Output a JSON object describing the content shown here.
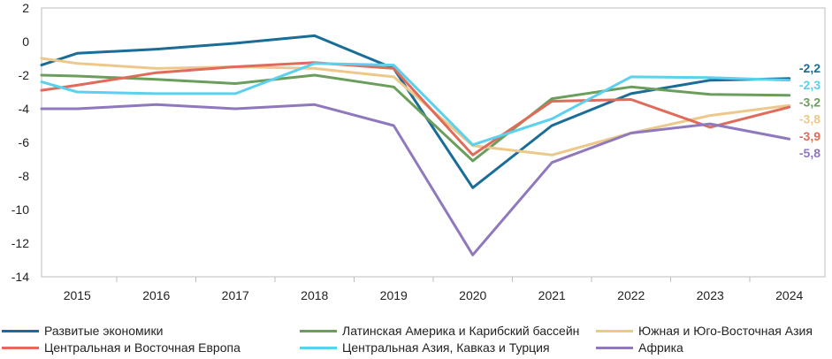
{
  "chart_data": {
    "type": "line",
    "title": "",
    "xlabel": "",
    "ylabel": "",
    "x": [
      "2015",
      "2016",
      "2017",
      "2018",
      "2019",
      "2020",
      "2021",
      "2022",
      "2023",
      "2024"
    ],
    "ylim": [
      -14,
      2
    ],
    "yticks": [
      2,
      0,
      -2,
      -4,
      -6,
      -8,
      -10,
      -12,
      -14
    ],
    "ytick_labels": [
      "2",
      "0",
      "-2",
      "-4",
      "-6",
      "-8",
      "-10",
      "-12",
      "-14"
    ],
    "series": [
      {
        "name": "Развитые экономики",
        "color": "#1a6d96",
        "x": [
          2014.55,
          2015,
          2016,
          2017,
          2018,
          2019,
          2020,
          2021,
          2022,
          2023,
          2024
        ],
        "values": [
          -1.4,
          -0.7,
          -0.45,
          -0.1,
          0.35,
          -1.6,
          -8.7,
          -5.0,
          -3.1,
          -2.3,
          -2.2
        ],
        "end_label": "-2,2"
      },
      {
        "name": "Латинская Америка и Карибский бассейн",
        "color": "#6b9e5c",
        "x": [
          2014.55,
          2015,
          2016,
          2017,
          2018,
          2019,
          2020,
          2021,
          2022,
          2023,
          2024
        ],
        "values": [
          -2.0,
          -2.05,
          -2.25,
          -2.5,
          -2.0,
          -2.7,
          -7.1,
          -3.4,
          -2.7,
          -3.15,
          -3.2
        ],
        "end_label": "-3,2"
      },
      {
        "name": "Южная и Юго-Восточная Азия",
        "color": "#ecc98a",
        "x": [
          2014.55,
          2015,
          2016,
          2017,
          2018,
          2019,
          2020,
          2021,
          2022,
          2023,
          2024
        ],
        "values": [
          -1.0,
          -1.3,
          -1.6,
          -1.5,
          -1.6,
          -2.1,
          -6.2,
          -6.75,
          -5.45,
          -4.4,
          -3.8
        ],
        "end_label": "-3,8"
      },
      {
        "name": "Центральная и Восточная Европа",
        "color": "#e06b5a",
        "x": [
          2014.55,
          2015,
          2016,
          2017,
          2018,
          2019,
          2020,
          2021,
          2022,
          2023,
          2024
        ],
        "values": [
          -2.9,
          -2.6,
          -1.85,
          -1.5,
          -1.25,
          -1.6,
          -6.75,
          -3.55,
          -3.45,
          -5.1,
          -3.9
        ],
        "end_label": "-3,9"
      },
      {
        "name": "Центральная Азия, Кавказ и Турция",
        "color": "#5bd0ef",
        "x": [
          2014.55,
          2015,
          2016,
          2017,
          2018,
          2019,
          2020,
          2021,
          2022,
          2023,
          2024
        ],
        "values": [
          -2.4,
          -3.0,
          -3.1,
          -3.1,
          -1.3,
          -1.4,
          -6.15,
          -4.6,
          -2.1,
          -2.15,
          -2.3
        ],
        "end_label": "-2,3"
      },
      {
        "name": "Африка",
        "color": "#8f78bd",
        "x": [
          2014.55,
          2015,
          2016,
          2017,
          2018,
          2019,
          2020,
          2021,
          2022,
          2023,
          2024
        ],
        "values": [
          -4.0,
          -4.0,
          -3.75,
          -4.0,
          -3.75,
          -5.0,
          -12.7,
          -7.2,
          -5.45,
          -4.9,
          -5.8
        ],
        "end_label": "-5,8"
      }
    ]
  },
  "legend": {
    "items": [
      {
        "label": "Развитые экономики",
        "color": "#1a6d96"
      },
      {
        "label": "Латинская Америка и Карибский бассейн",
        "color": "#6b9e5c"
      },
      {
        "label": "Южная и Юго-Восточная Азия",
        "color": "#ecc98a"
      },
      {
        "label": "Центральная и Восточная Европа",
        "color": "#e06b5a"
      },
      {
        "label": "Центральная Азия, Кавказ и Турция",
        "color": "#5bd0ef"
      },
      {
        "label": "Африка",
        "color": "#8f78bd"
      }
    ]
  }
}
